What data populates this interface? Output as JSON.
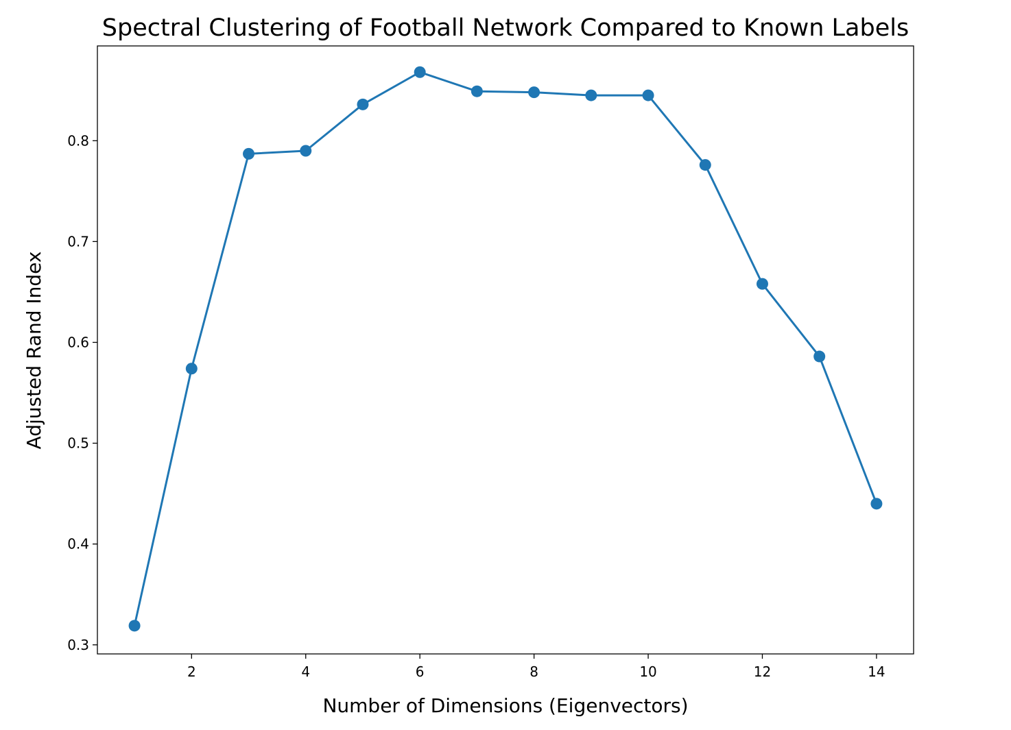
{
  "chart_data": {
    "type": "line",
    "title": "Spectral Clustering of Football Network Compared to Known Labels",
    "xlabel": "Number of Dimensions (Eigenvectors)",
    "ylabel": "Adjusted Rand Index",
    "xlim": [
      0.35,
      14.65
    ],
    "ylim": [
      0.291,
      0.894
    ],
    "xticks": [
      2,
      4,
      6,
      8,
      10,
      12,
      14
    ],
    "xtick_labels": [
      "2",
      "4",
      "6",
      "8",
      "10",
      "12",
      "14"
    ],
    "yticks": [
      0.3,
      0.4,
      0.5,
      0.6,
      0.7,
      0.8
    ],
    "ytick_labels": [
      "0.3",
      "0.4",
      "0.5",
      "0.6",
      "0.7",
      "0.8"
    ],
    "grid": false,
    "series": [
      {
        "color": "#1f77b4",
        "marker": "circle",
        "x": [
          1,
          2,
          3,
          4,
          5,
          6,
          7,
          8,
          9,
          10,
          11,
          12,
          13,
          14
        ],
        "y": [
          0.319,
          0.574,
          0.787,
          0.79,
          0.836,
          0.868,
          0.849,
          0.848,
          0.845,
          0.845,
          0.776,
          0.658,
          0.586,
          0.44
        ]
      }
    ]
  }
}
